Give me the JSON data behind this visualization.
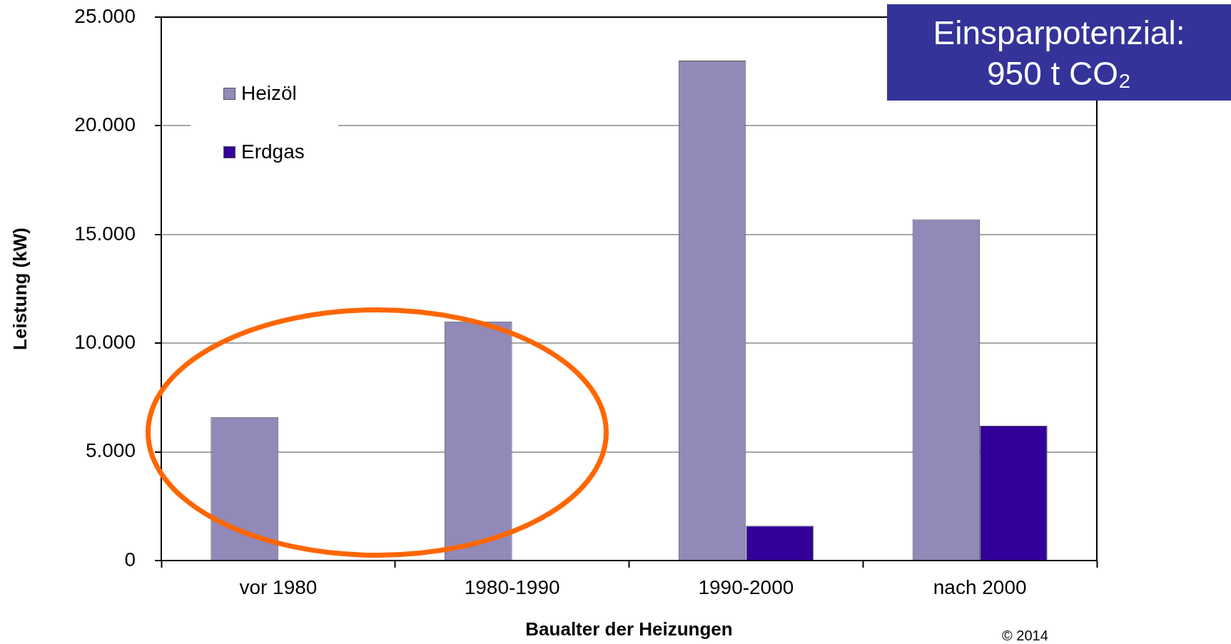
{
  "chart_data": {
    "type": "bar",
    "categories": [
      "vor 1980",
      "1980-1990",
      "1990-2000",
      "nach 2000"
    ],
    "series": [
      {
        "name": "Heizöl",
        "color": "#9189b8",
        "values": [
          6600,
          11000,
          23000,
          15700
        ]
      },
      {
        "name": "Erdgas",
        "color": "#330099",
        "values": [
          null,
          null,
          1600,
          6200
        ]
      }
    ],
    "xlabel": "Baualter der Heizungen",
    "ylabel": "Leistung (kW)",
    "ylim": [
      0,
      25000
    ],
    "yticks": [
      0,
      {
        "value": 5000,
        "label": "5.000"
      },
      {
        "value": 10000,
        "label": "10.000"
      },
      {
        "value": 15000,
        "label": "15.000"
      },
      {
        "value": 20000,
        "label": "20.000"
      },
      {
        "value": 25000,
        "label": "25.000"
      }
    ],
    "grid": "y",
    "legend": "top left",
    "annotations": [
      "Einsparpotenzial:\n950 t CO₂",
      "© 2014"
    ]
  }
}
